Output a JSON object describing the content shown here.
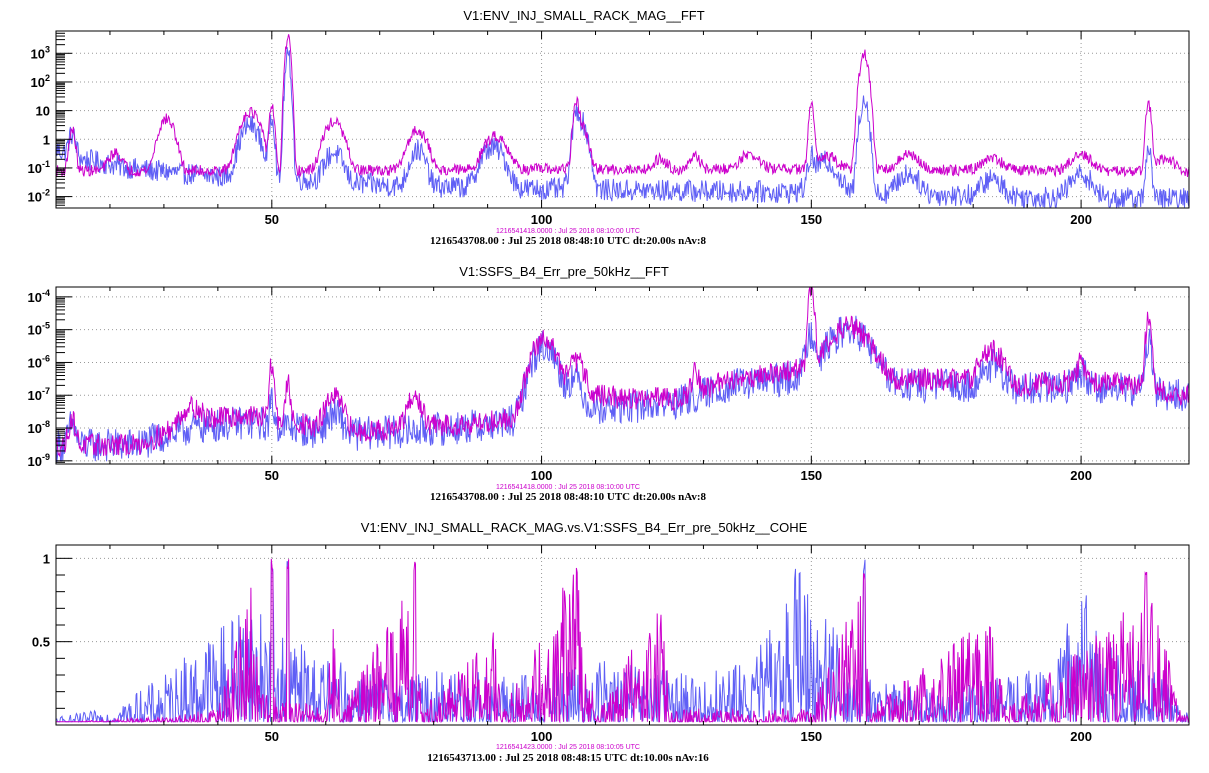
{
  "colors": {
    "blue": "#5f5ff5",
    "magenta": "#cc00cc",
    "grid": "#999999"
  },
  "chart_data": [
    {
      "type": "line",
      "title": "V1:ENV_INJ_SMALL_RACK_MAG__FFT",
      "reference_time": "1216541418.0000 : Jul 25 2018 08:10:00 UTC",
      "footer": "1216543708.00 : Jul 25 2018 08:48:10 UTC dt:20.00s nAv:8",
      "xlim": [
        10,
        220
      ],
      "xticks": [
        50,
        100,
        150,
        200
      ],
      "ylog": true,
      "ylim": [
        0.004,
        6000
      ],
      "yticks": [
        {
          "v": 0.01,
          "b": "10",
          "e": "-2"
        },
        {
          "v": 0.1,
          "b": "10",
          "e": "-1"
        },
        {
          "v": 1,
          "b": "1",
          "e": ""
        },
        {
          "v": 10,
          "b": "10",
          "e": ""
        },
        {
          "v": 100,
          "b": "10",
          "e": "2"
        },
        {
          "v": 1000,
          "b": "10",
          "e": "3"
        }
      ],
      "grid": true,
      "series": [
        {
          "color": "#5f5ff5",
          "base": [
            [
              10,
              0.45
            ],
            [
              15,
              0.2
            ],
            [
              25,
              0.09
            ],
            [
              40,
              0.05
            ],
            [
              55,
              0.04
            ],
            [
              70,
              0.025
            ],
            [
              100,
              0.018
            ],
            [
              150,
              0.014
            ],
            [
              200,
              0.009
            ],
            [
              220,
              0.008
            ]
          ],
          "noise": 0.9,
          "peaks": [
            [
              13,
              1.2,
              0.5
            ],
            [
              46,
              3,
              1.2
            ],
            [
              50,
              7,
              0.3
            ],
            [
              53,
              800,
              0.3
            ],
            [
              61.5,
              0.3,
              1.2
            ],
            [
              77,
              0.4,
              1.0
            ],
            [
              91,
              0.5,
              1.5
            ],
            [
              106.5,
              8,
              0.4
            ],
            [
              107.3,
              4,
              0.8
            ],
            [
              150,
              0.2,
              0.4
            ],
            [
              152.5,
              0.15,
              1.6
            ],
            [
              159.8,
              25,
              0.5
            ],
            [
              168,
              0.05,
              1.5
            ],
            [
              183.5,
              0.03,
              1.5
            ],
            [
              200,
              0.05,
              1.5
            ],
            [
              212.5,
              0.6,
              0.3
            ]
          ]
        },
        {
          "color": "#cc00cc",
          "base": [
            [
              10,
              0.08
            ],
            [
              30,
              0.08
            ],
            [
              60,
              0.08
            ],
            [
              100,
              0.09
            ],
            [
              150,
              0.09
            ],
            [
              200,
              0.08
            ],
            [
              220,
              0.07
            ]
          ],
          "noise": 0.45,
          "peaks": [
            [
              13,
              2,
              0.4
            ],
            [
              21,
              0.25,
              1.0
            ],
            [
              30.5,
              5,
              1.0
            ],
            [
              46,
              9,
              1.2
            ],
            [
              50,
              15,
              0.3
            ],
            [
              53,
              3500,
              0.3
            ],
            [
              61.5,
              4,
              1.2
            ],
            [
              77,
              2,
              1.2
            ],
            [
              91.5,
              1.2,
              1.5
            ],
            [
              106.5,
              20,
              0.35
            ],
            [
              107.3,
              3,
              0.8
            ],
            [
              122,
              0.12,
              1.0
            ],
            [
              128.5,
              0.15,
              0.8
            ],
            [
              138.5,
              0.2,
              1.5
            ],
            [
              150,
              15,
              0.3
            ],
            [
              152.5,
              0.2,
              1.6
            ],
            [
              159.8,
              900,
              0.5
            ],
            [
              168,
              0.2,
              1.5
            ],
            [
              183.5,
              0.15,
              1.5
            ],
            [
              200,
              0.2,
              1.5
            ],
            [
              212.5,
              18,
              0.3
            ],
            [
              215.5,
              0.15,
              1.5
            ]
          ]
        }
      ]
    },
    {
      "type": "line",
      "title": "V1:SSFS_B4_Err_pre_50kHz__FFT",
      "reference_time": "1216541418.0000 : Jul 25 2018 08:10:00 UTC",
      "footer": "1216543708.00 : Jul 25 2018 08:48:10 UTC dt:20.00s nAv:8",
      "xlim": [
        10,
        220
      ],
      "xticks": [
        50,
        100,
        150,
        200
      ],
      "ylog": true,
      "ylim": [
        8e-10,
        0.0002
      ],
      "yticks": [
        {
          "v": 1e-09,
          "b": "10",
          "e": "-9"
        },
        {
          "v": 1e-08,
          "b": "10",
          "e": "-8"
        },
        {
          "v": 1e-07,
          "b": "10",
          "e": "-7"
        },
        {
          "v": 1e-06,
          "b": "10",
          "e": "-6"
        },
        {
          "v": 1e-05,
          "b": "10",
          "e": "-5"
        },
        {
          "v": 0.0001,
          "b": "10",
          "e": "-4"
        }
      ],
      "grid": true,
      "series": [
        {
          "color": "#5f5ff5",
          "base": [
            [
              10,
              3e-09
            ],
            [
              25,
              3e-09
            ],
            [
              35,
              1e-08
            ],
            [
              45,
              1.5e-08
            ],
            [
              55,
              1e-08
            ],
            [
              60,
              6e-09
            ],
            [
              75,
              8e-09
            ],
            [
              90,
              1.2e-08
            ],
            [
              98,
              2e-08
            ],
            [
              105,
              5e-08
            ],
            [
              115,
              4e-08
            ],
            [
              125,
              6e-08
            ],
            [
              135,
              2e-07
            ],
            [
              145,
              3e-07
            ],
            [
              157,
              1.5e-06
            ],
            [
              165,
              2e-07
            ],
            [
              180,
              2e-07
            ],
            [
              190,
              1.5e-07
            ],
            [
              200,
              2e-07
            ],
            [
              210,
              1.5e-07
            ],
            [
              220,
              9e-08
            ]
          ],
          "noise": 1.2,
          "peaks": [
            [
              13,
              1e-08,
              0.5
            ],
            [
              50,
              5e-08,
              0.3
            ],
            [
              61.5,
              2e-08,
              1.2
            ],
            [
              100.5,
              3e-06,
              1.5
            ],
            [
              106,
              3e-07,
              1.0
            ],
            [
              150,
              8e-06,
              0.6
            ],
            [
              157,
              8e-06,
              2.5
            ],
            [
              183.5,
              6e-07,
              1.5
            ],
            [
              200,
              3e-07,
              1.0
            ],
            [
              212.5,
              5e-06,
              0.4
            ]
          ]
        },
        {
          "color": "#cc00cc",
          "base": [
            [
              10,
              3e-09
            ],
            [
              25,
              3e-09
            ],
            [
              35,
              1.5e-08
            ],
            [
              45,
              2.5e-08
            ],
            [
              55,
              1.5e-08
            ],
            [
              60,
              7e-09
            ],
            [
              75,
              1e-08
            ],
            [
              90,
              1.5e-08
            ],
            [
              98,
              2.5e-08
            ],
            [
              105,
              1.5e-07
            ],
            [
              115,
              8e-08
            ],
            [
              125,
              8e-08
            ],
            [
              135,
              3e-07
            ],
            [
              145,
              5e-07
            ],
            [
              157,
              2e-06
            ],
            [
              165,
              3e-07
            ],
            [
              180,
              3e-07
            ],
            [
              190,
              2e-07
            ],
            [
              200,
              3e-07
            ],
            [
              210,
              2e-07
            ],
            [
              220,
              1e-07
            ]
          ],
          "noise": 0.8,
          "peaks": [
            [
              13,
              1.5e-08,
              0.5
            ],
            [
              35,
              3e-08,
              1.5
            ],
            [
              50,
              8e-07,
              0.3
            ],
            [
              53,
              2e-07,
              0.3
            ],
            [
              61.5,
              8e-08,
              1.2
            ],
            [
              76.5,
              7e-08,
              1.0
            ],
            [
              100.5,
              5e-06,
              1.5
            ],
            [
              106.5,
              1e-06,
              1.0
            ],
            [
              128.5,
              4e-07,
              0.5
            ],
            [
              150,
              0.00015,
              0.35
            ],
            [
              157,
              1e-05,
              2.5
            ],
            [
              183.5,
              2e-06,
              1.5
            ],
            [
              200,
              8e-07,
              0.5
            ],
            [
              212.5,
              2e-05,
              0.35
            ]
          ]
        }
      ]
    },
    {
      "type": "line",
      "title": "V1:ENV_INJ_SMALL_RACK_MAG.vs.V1:SSFS_B4_Err_pre_50kHz__COHE",
      "reference_time": "1216541423.0000 : Jul 25 2018 08:10:05 UTC",
      "footer": "1216543713.00 : Jul 25 2018 08:48:15 UTC dt:10.00s nAv:16",
      "xlim": [
        10,
        220
      ],
      "xticks": [
        50,
        100,
        150,
        200
      ],
      "ylog": false,
      "ylim": [
        0,
        1.08
      ],
      "yticks": [
        {
          "v": 0.5,
          "b": "0.5",
          "e": ""
        },
        {
          "v": 1,
          "b": "1",
          "e": ""
        }
      ],
      "grid": true,
      "series": [
        {
          "color": "#5f5ff5",
          "coh": [
            [
              10,
              0.05
            ],
            [
              20,
              0.1
            ],
            [
              30,
              0.3
            ],
            [
              38,
              0.55
            ],
            [
              46,
              0.8
            ],
            [
              52,
              0.6
            ],
            [
              58,
              0.45
            ],
            [
              65,
              0.35
            ],
            [
              75,
              0.3
            ],
            [
              85,
              0.35
            ],
            [
              95,
              0.3
            ],
            [
              102,
              0.35
            ],
            [
              110,
              0.4
            ],
            [
              120,
              0.35
            ],
            [
              130,
              0.3
            ],
            [
              140,
              0.45
            ],
            [
              148,
              0.95
            ],
            [
              152,
              0.85
            ],
            [
              158,
              0.3
            ],
            [
              165,
              0.25
            ],
            [
              175,
              0.2
            ],
            [
              185,
              0.3
            ],
            [
              195,
              0.35
            ],
            [
              200,
              0.9
            ],
            [
              205,
              0.5
            ],
            [
              212,
              0.4
            ],
            [
              220,
              0.1
            ]
          ],
          "spikes": [
            [
              50,
              1.0
            ],
            [
              53,
              1.0
            ],
            [
              159.8,
              1.0
            ],
            [
              147,
              0.97
            ]
          ]
        },
        {
          "color": "#cc00cc",
          "coh": [
            [
              10,
              0.02
            ],
            [
              30,
              0.05
            ],
            [
              40,
              0.1
            ],
            [
              46,
              0.9
            ],
            [
              48,
              0.2
            ],
            [
              60,
              0.1
            ],
            [
              61.5,
              0.7
            ],
            [
              63,
              0.1
            ],
            [
              76.5,
              0.95
            ],
            [
              78,
              0.1
            ],
            [
              91,
              0.6
            ],
            [
              93,
              0.1
            ],
            [
              106.5,
              1.0
            ],
            [
              108,
              0.5
            ],
            [
              110,
              0.1
            ],
            [
              122,
              0.75
            ],
            [
              124,
              0.1
            ],
            [
              150,
              0.1
            ],
            [
              159.8,
              0.9
            ],
            [
              161,
              0.1
            ],
            [
              183,
              0.7
            ],
            [
              186,
              0.1
            ],
            [
              212.5,
              0.8
            ],
            [
              215,
              0.6
            ],
            [
              218,
              0.1
            ],
            [
              220,
              0.05
            ]
          ],
          "spikes": [
            [
              50,
              1.0
            ],
            [
              53,
              1.0
            ],
            [
              106.5,
              1.0
            ],
            [
              159.8,
              0.95
            ],
            [
              76.5,
              1.0
            ],
            [
              212,
              0.97
            ]
          ]
        }
      ]
    }
  ]
}
